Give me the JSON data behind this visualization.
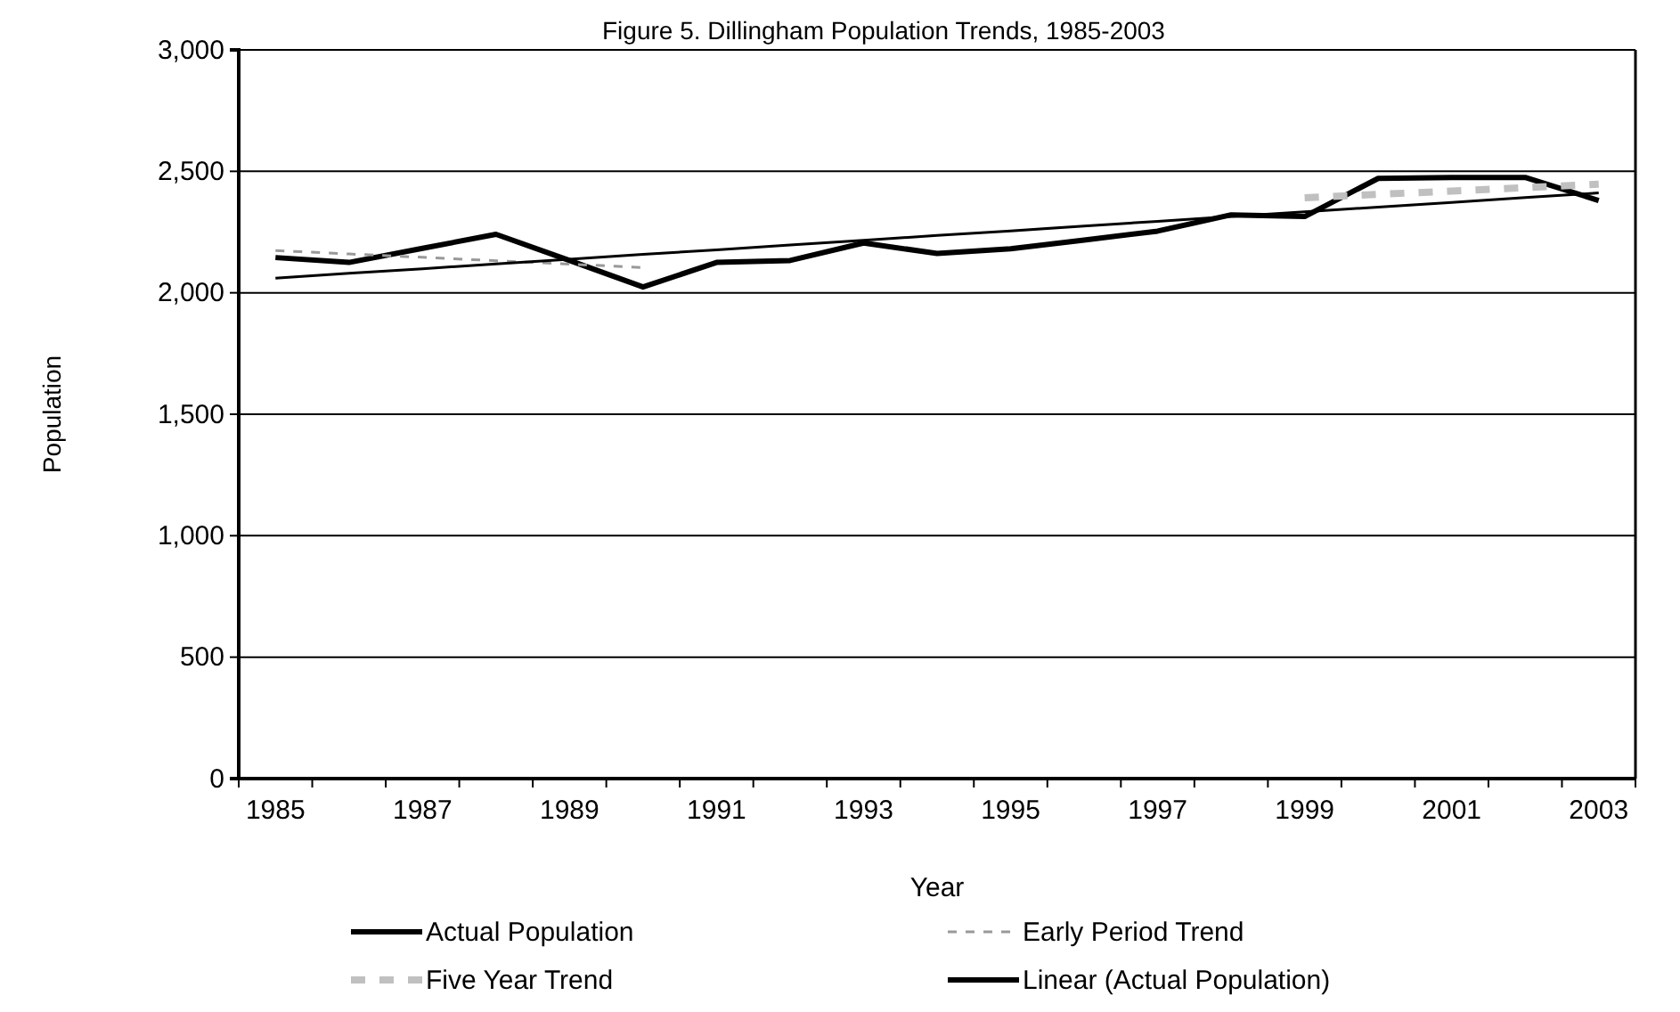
{
  "chart_data": {
    "type": "line",
    "title": "Figure 5. Dillingham Population Trends, 1985-2003",
    "xlabel": "Year",
    "ylabel": "Population",
    "categories": [
      "1985",
      null,
      "1987",
      null,
      "1989",
      null,
      "1991",
      null,
      "1993",
      null,
      "1995",
      null,
      "1997",
      null,
      "1999",
      null,
      "2001",
      null,
      "2003"
    ],
    "series": [
      {
        "name": "Actual Population",
        "color": "#000000",
        "line_style": "solid",
        "values": [
          2145,
          2125,
          2183,
          2241,
          2133,
          2024,
          2125,
          2133,
          2205,
          2162,
          2181,
          2217,
          2254,
          2321,
          2314,
          2471,
          2475,
          2475,
          2380
        ]
      },
      {
        "name": "Early Period Trend",
        "color": "#999999",
        "line_style": "dashed",
        "values": [
          2174,
          2160,
          2146,
          2132,
          2118,
          2104,
          null,
          null,
          null,
          null,
          null,
          null,
          null,
          null,
          null,
          null,
          null,
          null,
          null
        ]
      },
      {
        "name": "Five Year Trend",
        "color": "#c0c0c0",
        "line_style": "dashed",
        "values": [
          null,
          null,
          null,
          null,
          null,
          null,
          null,
          null,
          null,
          null,
          null,
          null,
          null,
          null,
          2391,
          2405,
          2419,
          2433,
          2447
        ]
      },
      {
        "name": "Linear (Actual Population)",
        "color": "#000000",
        "line_style": "solid",
        "values": [
          2060,
          2080,
          2099,
          2119,
          2138,
          2158,
          2177,
          2197,
          2216,
          2236,
          2255,
          2275,
          2294,
          2314,
          2333,
          2353,
          2372,
          2392,
          2411
        ]
      }
    ],
    "ylim": [
      0,
      3000
    ],
    "yticks": [
      0,
      500,
      {
        "value": 1000,
        "label": "1,000"
      },
      {
        "value": 1500,
        "label": "1,500"
      },
      {
        "value": 2000,
        "label": "2,000"
      },
      {
        "value": 2500,
        "label": "2,500"
      },
      {
        "value": 3000,
        "label": "3,000"
      }
    ],
    "grid": "y",
    "legend": "bottom",
    "marker": "none"
  }
}
